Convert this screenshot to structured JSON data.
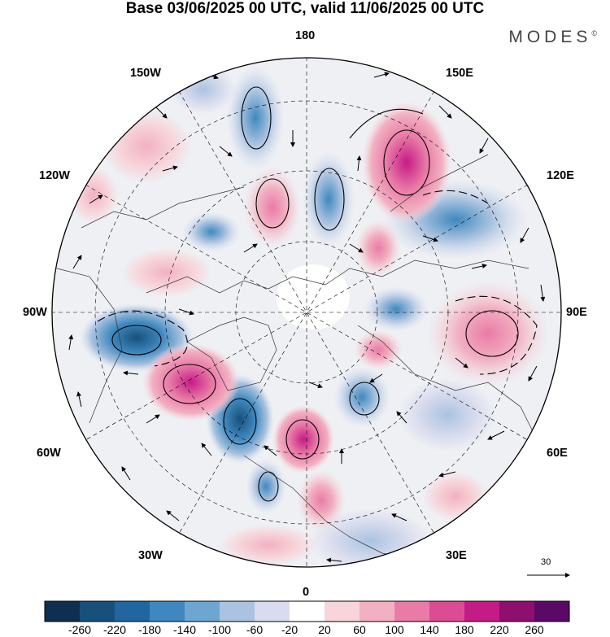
{
  "header": {
    "title": "Base 03/06/2025 00 UTC, valid 11/06/2025 00 UTC",
    "brand": "MODES",
    "brand_mark": "©"
  },
  "map": {
    "projection": "north polar stereographic",
    "longitude_labels": {
      "top": "180",
      "bottom": "0",
      "left": "90W",
      "right": "90E",
      "upper_left_1": "150W",
      "upper_left_2": "120W",
      "upper_right_1": "150E",
      "upper_right_2": "120E",
      "lower_left_1": "60W",
      "lower_left_2": "30W",
      "lower_right_1": "60E",
      "lower_right_2": "30E"
    },
    "reference_vector": "30"
  },
  "colorbar": {
    "ticks": [
      "-260",
      "-220",
      "-180",
      "-140",
      "-100",
      "-60",
      "-20",
      "20",
      "60",
      "100",
      "140",
      "180",
      "220",
      "260"
    ],
    "colors": [
      "#0e2f4f",
      "#17507a",
      "#2166a0",
      "#3f88bf",
      "#6ea6d2",
      "#a9c3e0",
      "#d9dcee",
      "#ffffff",
      "#f7d5da",
      "#f2b1c3",
      "#e97ba6",
      "#dc4c93",
      "#c51b86",
      "#8e0f6e",
      "#5a0a66"
    ]
  },
  "anomaly_colors": {
    "neg_strong": "#2166a0",
    "neg_mid": "#6ea6d2",
    "neg_weak": "#d9dcee",
    "pos_weak": "#f7d5da",
    "pos_mid": "#e97ba6",
    "pos_strong": "#c51b86"
  }
}
